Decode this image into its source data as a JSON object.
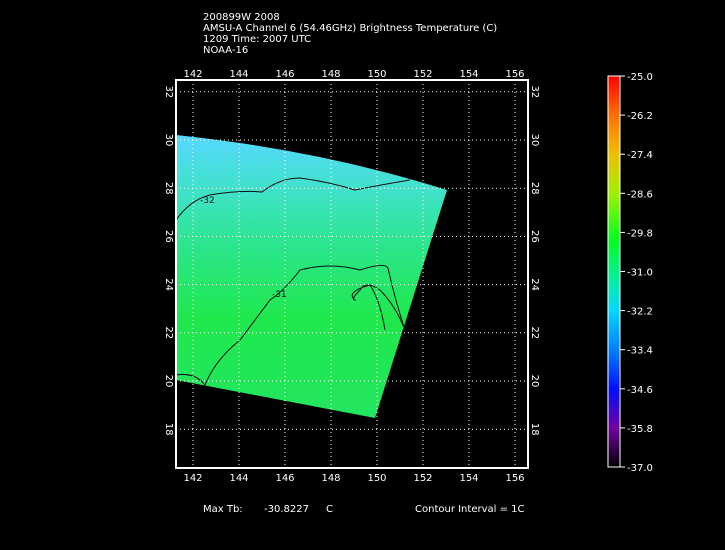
{
  "header": {
    "lines": [
      "200899W 2008",
      "AMSU-A Channel 6 (54.46GHz) Brightness Temperature (C)",
      "1209 Time: 2007 UTC",
      "NOAA-16"
    ]
  },
  "map": {
    "lon_ticks": [
      142,
      144,
      146,
      148,
      150,
      152,
      154,
      156
    ],
    "lat_ticks": [
      18,
      20,
      22,
      24,
      26,
      28,
      30,
      32
    ],
    "contour_labels": [
      "-32",
      "-31"
    ]
  },
  "colorbar": {
    "labels": [
      "-25.0",
      "-26.2",
      "-27.4",
      "-28.6",
      "-29.8",
      "-31.0",
      "-32.2",
      "-33.4",
      "-34.6",
      "-35.8",
      "-37.0"
    ]
  },
  "footer": {
    "max_label": "Max Tb:",
    "max_value": "-30.8227",
    "unit": "C",
    "contour_interval": "Contour Interval = 1C"
  }
}
